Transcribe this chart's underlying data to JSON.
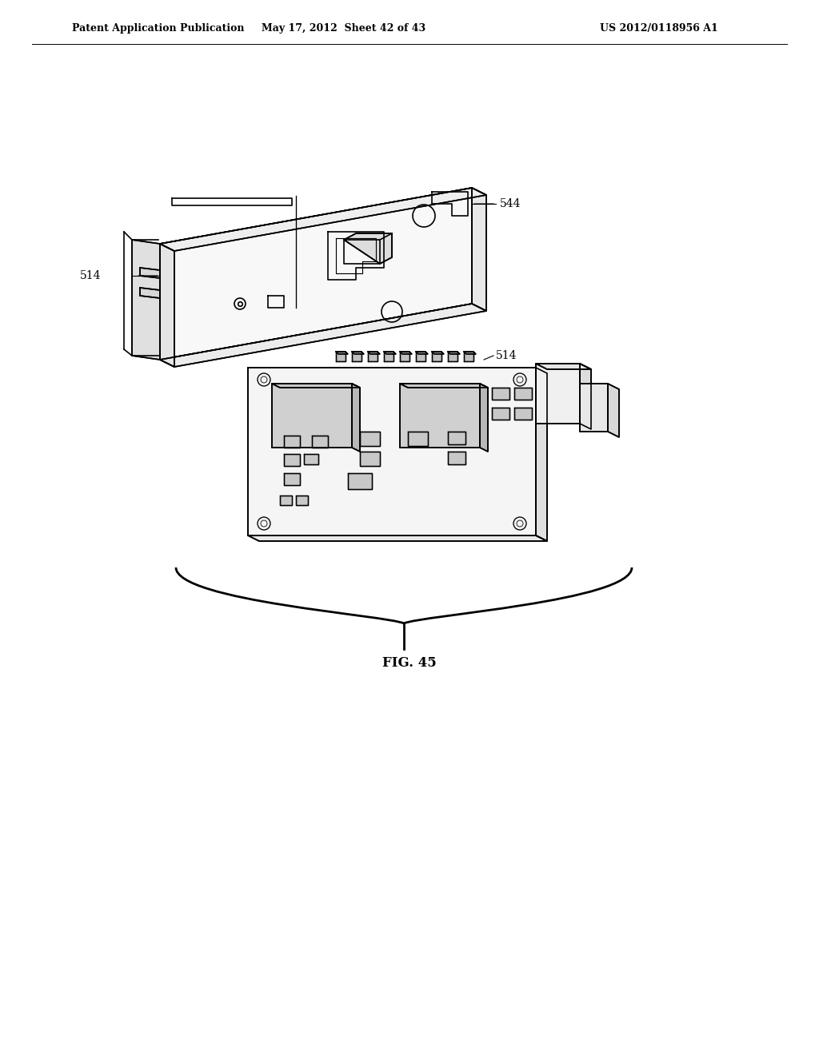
{
  "title_left": "Patent Application Publication",
  "title_mid": "May 17, 2012  Sheet 42 of 43",
  "title_right": "US 2012/0118956 A1",
  "fig_label": "FIG. 45",
  "label_544": "544",
  "label_514_top": "514",
  "label_514_bot": "514",
  "bg_color": "#ffffff",
  "line_color": "#000000",
  "line_width": 1.2,
  "header_fontsize": 9,
  "label_fontsize": 10
}
